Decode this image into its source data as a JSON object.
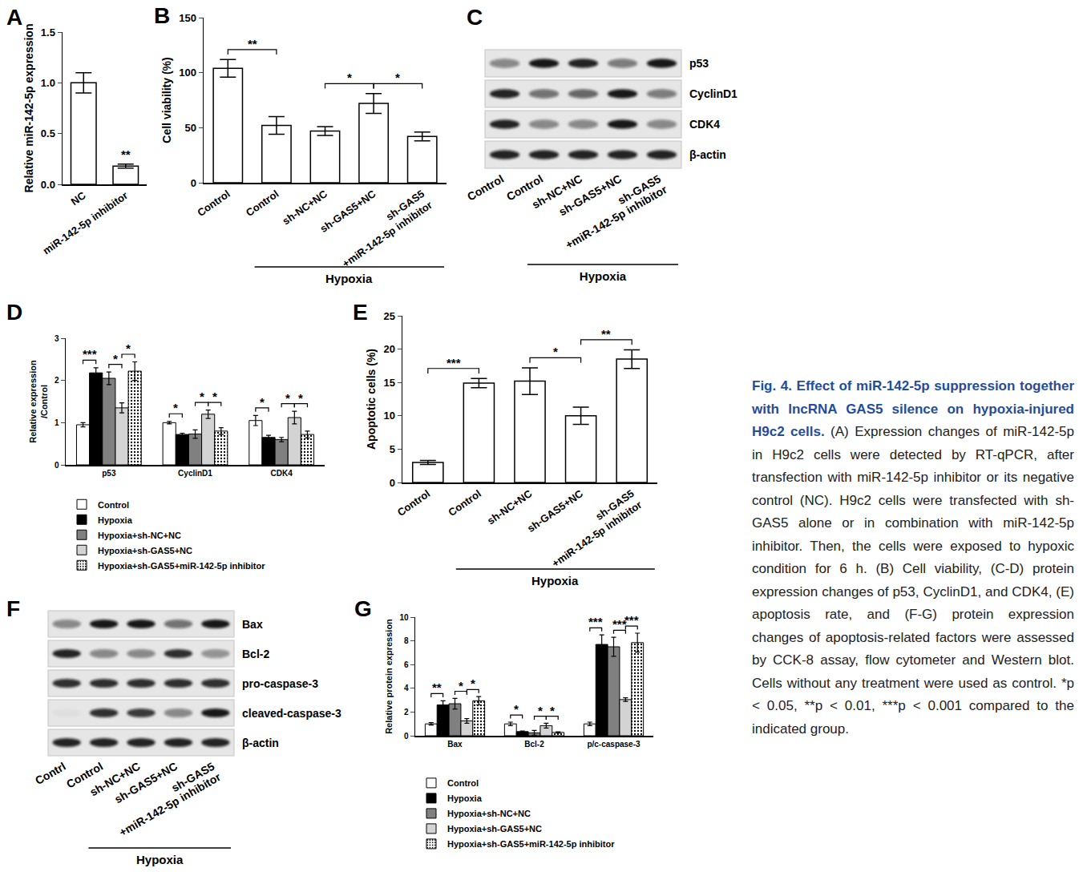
{
  "chart_data": [
    {
      "panel": "A",
      "type": "bar",
      "categories": [
        "NC",
        "miR-142-5p inhibitor"
      ],
      "values": [
        1.0,
        0.18
      ],
      "errors": [
        0.1,
        0.02
      ],
      "color": "#ffffff",
      "y_label": "Relative miR-142-5p expression",
      "ylim": [
        0,
        1.5
      ],
      "yticks": [
        {
          "value": 0,
          "label": "0.0"
        },
        {
          "value": 0.5,
          "label": "0.5"
        },
        {
          "value": 1,
          "label": "1.0"
        },
        {
          "value": 1.5,
          "label": "1.5"
        }
      ],
      "significance": [
        {
          "index": 1,
          "label": "**"
        }
      ],
      "grid": false
    },
    {
      "panel": "B",
      "type": "bar",
      "categories": [
        "Control",
        "Control",
        "sh-NC+NC",
        "sh-GAS5+NC",
        "sh-GAS5\n+miR-142-5p inhibitor"
      ],
      "values": [
        104,
        52,
        47,
        72,
        42
      ],
      "errors": [
        8,
        8,
        4,
        9,
        4
      ],
      "color": "#ffffff",
      "y_label": "Cell viability (%)",
      "ylim": [
        0,
        150
      ],
      "yticks": [
        0,
        50,
        100,
        150
      ],
      "group": {
        "label": "Hypoxia",
        "from": 1,
        "to": 4
      },
      "significance": [
        {
          "pair": [
            0,
            1
          ],
          "label": "**"
        },
        {
          "pair": [
            2,
            3
          ],
          "label": "*"
        },
        {
          "pair": [
            3,
            4
          ],
          "label": "*"
        }
      ],
      "grid": false
    },
    {
      "panel": "C",
      "type": "blot",
      "rows": [
        "p53",
        "CyclinD1",
        "CDK4",
        "β-actin"
      ],
      "categories": [
        "Control",
        "Control",
        "sh-NC+NC",
        "sh-GAS5+NC",
        "sh-GAS5\n+miR-142-5p inhibitor"
      ],
      "bands": [
        [
          0.45,
          0.95,
          0.9,
          0.5,
          0.95
        ],
        [
          0.9,
          0.55,
          0.6,
          0.95,
          0.5
        ],
        [
          0.9,
          0.45,
          0.45,
          0.95,
          0.45
        ],
        [
          0.9,
          0.9,
          0.9,
          0.9,
          0.9
        ]
      ],
      "group": {
        "label": "Hypoxia",
        "from": 1,
        "to": 4
      }
    },
    {
      "panel": "D",
      "type": "bar",
      "categories": [
        "p53",
        "CyclinD1",
        "CDK4"
      ],
      "series": [
        {
          "name": "Control",
          "color": "#ffffff",
          "values": [
            0.95,
            1.0,
            1.05
          ],
          "errors": [
            0.05,
            0.03,
            0.12
          ]
        },
        {
          "name": "Hypoxia",
          "color": "#000000",
          "values": [
            2.18,
            0.72,
            0.65
          ],
          "errors": [
            0.12,
            0.03,
            0.05
          ]
        },
        {
          "name": "Hypoxia+sh-NC+NC",
          "color": "#808080",
          "values": [
            2.05,
            0.73,
            0.6
          ],
          "errors": [
            0.15,
            0.1,
            0.05
          ]
        },
        {
          "name": "Hypoxia+sh-GAS5+NC",
          "color": "#d3d3d3",
          "values": [
            1.35,
            1.2,
            1.12
          ],
          "errors": [
            0.12,
            0.1,
            0.15
          ]
        },
        {
          "name": "Hypoxia+sh-GAS5+miR-142-5p inhibitor",
          "color": "#ffffff",
          "marker": "dotted",
          "values": [
            2.22,
            0.8,
            0.72
          ],
          "errors": [
            0.22,
            0.08,
            0.08
          ]
        }
      ],
      "y_label": "Relative expression\n/Control",
      "ylim": [
        0,
        3
      ],
      "yticks": [
        0,
        1,
        2,
        3
      ],
      "legend": "bottom",
      "significance": [
        {
          "category": 0,
          "pair": [
            0,
            1
          ],
          "label": "***"
        },
        {
          "category": 0,
          "pair": [
            2,
            3
          ],
          "label": "*"
        },
        {
          "category": 0,
          "pair": [
            3,
            4
          ],
          "label": "*"
        },
        {
          "category": 1,
          "pair": [
            0,
            1
          ],
          "label": "*"
        },
        {
          "category": 1,
          "pair": [
            2,
            3
          ],
          "label": "*"
        },
        {
          "category": 1,
          "pair": [
            3,
            4
          ],
          "label": "*"
        },
        {
          "category": 2,
          "pair": [
            0,
            1
          ],
          "label": "*"
        },
        {
          "category": 2,
          "pair": [
            2,
            3
          ],
          "label": "*"
        },
        {
          "category": 2,
          "pair": [
            3,
            4
          ],
          "label": "*"
        }
      ],
      "grid": false
    },
    {
      "panel": "E",
      "type": "bar",
      "categories": [
        "Control",
        "Control",
        "sh-NC+NC",
        "sh-GAS5+NC",
        "sh-GAS5\n+miR-142-5p inhibitor"
      ],
      "values": [
        3,
        14.9,
        15.2,
        10,
        18.5
      ],
      "errors": [
        0.3,
        0.7,
        2.0,
        1.3,
        1.4
      ],
      "color": "#ffffff",
      "y_label": "Apoptotic cells (%)",
      "ylim": [
        0,
        25
      ],
      "yticks": [
        0,
        5,
        10,
        15,
        20,
        25
      ],
      "group": {
        "label": "Hypoxia",
        "from": 1,
        "to": 4
      },
      "significance": [
        {
          "pair": [
            0,
            1
          ],
          "label": "***"
        },
        {
          "pair": [
            2,
            3
          ],
          "label": "*"
        },
        {
          "pair": [
            3,
            4
          ],
          "label": "**"
        }
      ],
      "grid": false
    },
    {
      "panel": "F",
      "type": "blot",
      "rows": [
        "Bax",
        "Bcl-2",
        "pro-caspase-3",
        "cleaved-caspase-3",
        "β-actin"
      ],
      "categories": [
        "Contrl",
        "Control",
        "sh-NC+NC",
        "sh-GAS5+NC",
        "sh-GAS5\n+miR-142-5p inhibitor"
      ],
      "bands": [
        [
          0.45,
          0.95,
          0.95,
          0.55,
          0.95
        ],
        [
          0.9,
          0.45,
          0.45,
          0.85,
          0.4
        ],
        [
          0.85,
          0.85,
          0.85,
          0.85,
          0.85
        ],
        [
          0.03,
          0.85,
          0.8,
          0.45,
          0.95
        ],
        [
          0.9,
          0.9,
          0.9,
          0.9,
          0.9
        ]
      ],
      "group": {
        "label": "Hypoxia",
        "from": 1,
        "to": 4
      }
    },
    {
      "panel": "G",
      "type": "bar",
      "categories": [
        "Bax",
        "Bcl-2",
        "p/c-caspase-3"
      ],
      "series": [
        {
          "name": "Control",
          "color": "#ffffff",
          "values": [
            1.0,
            1.0,
            1.0
          ],
          "errors": [
            0.1,
            0.15,
            0.15
          ]
        },
        {
          "name": "Hypoxia",
          "color": "#000000",
          "values": [
            2.6,
            0.35,
            7.7
          ],
          "errors": [
            0.35,
            0.05,
            0.8
          ]
        },
        {
          "name": "Hypoxia+sh-NC+NC",
          "color": "#808080",
          "values": [
            2.7,
            0.25,
            7.5
          ],
          "errors": [
            0.45,
            0.2,
            0.8
          ]
        },
        {
          "name": "Hypoxia+sh-GAS5+NC",
          "color": "#d3d3d3",
          "values": [
            1.25,
            0.85,
            3.05
          ],
          "errors": [
            0.2,
            0.2,
            0.15
          ]
        },
        {
          "name": "Hypoxia+sh-GAS5+miR-142-5p inhibitor",
          "color": "#ffffff",
          "marker": "dotted",
          "values": [
            2.95,
            0.28,
            7.85
          ],
          "errors": [
            0.35,
            0.05,
            0.8
          ]
        }
      ],
      "y_label": "Relative protein expression",
      "ylim": [
        0,
        10
      ],
      "yticks": [
        0,
        2,
        4,
        6,
        8,
        10
      ],
      "legend": "bottom",
      "significance": [
        {
          "category": 0,
          "pair": [
            0,
            1
          ],
          "label": "**"
        },
        {
          "category": 0,
          "pair": [
            2,
            3
          ],
          "label": "*"
        },
        {
          "category": 0,
          "pair": [
            3,
            4
          ],
          "label": "*"
        },
        {
          "category": 1,
          "pair": [
            0,
            1
          ],
          "label": "*"
        },
        {
          "category": 1,
          "pair": [
            2,
            3
          ],
          "label": "*"
        },
        {
          "category": 1,
          "pair": [
            3,
            4
          ],
          "label": "*"
        },
        {
          "category": 2,
          "pair": [
            0,
            1
          ],
          "label": "***"
        },
        {
          "category": 2,
          "pair": [
            2,
            3
          ],
          "label": "***"
        },
        {
          "category": 2,
          "pair": [
            3,
            4
          ],
          "label": "***"
        }
      ],
      "grid": false
    }
  ],
  "caption": {
    "title": "Fig. 4. Effect of miR-142-5p suppression together with lncRNA GAS5 silence on hypoxia-injured H9c2 cells.",
    "text": "(A) Expression changes of miR-142-5p in H9c2 cells were detected by RT-qPCR, after transfection with miR-142-5p inhibitor or its negative control (NC). H9c2 cells were transfected with sh-GAS5 alone or in combination with miR-142-5p inhibitor. Then, the cells were exposed to hypoxic condition for 6 h. (B) Cell viability, (C-D) protein expression changes of p53, CyclinD1, and CDK4, (E) apoptosis rate, and (F-G) protein expression changes of apoptosis-related factors were assessed by CCK-8 assay, flow cytometer and Western blot. Cells without any treatment were used as control. *p < 0.05, **p < 0.01, ***p < 0.001 compared to the indicated group."
  }
}
